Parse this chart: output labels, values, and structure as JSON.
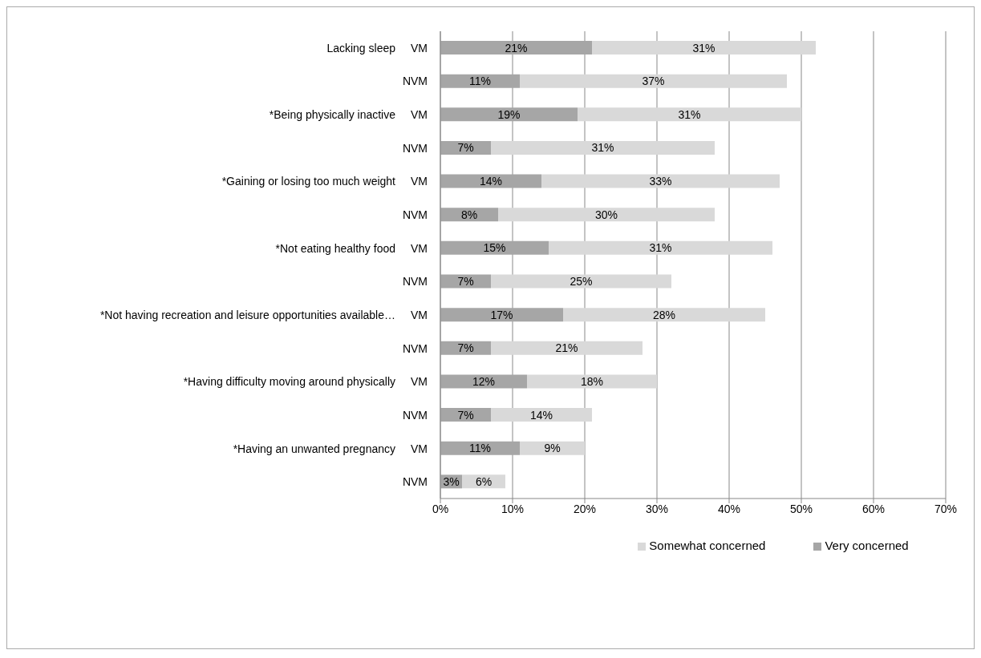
{
  "chart_data": {
    "type": "bar",
    "orientation": "horizontal",
    "stacked": true,
    "categories": [
      "VM",
      "NVM",
      "VM",
      "NVM",
      "VM",
      "NVM",
      "VM",
      "NVM",
      "VM",
      "NVM",
      "VM",
      "NVM",
      "VM",
      "NVM"
    ],
    "annotations": [
      "Lacking sleep",
      "*Being physically inactive",
      "*Gaining or losing too much weight",
      "*Not eating healthy food",
      "*Not having recreation and leisure opportunities available…",
      "*Having difficulty moving around physically",
      "*Having an unwanted pregnancy"
    ],
    "series": [
      {
        "name": "Very concerned",
        "color": "#a6a6a6",
        "values": [
          21,
          11,
          19,
          7,
          14,
          8,
          15,
          7,
          17,
          7,
          12,
          7,
          11,
          3
        ],
        "value_labels": [
          "21%",
          "11%",
          "19%",
          "7%",
          "14%",
          "8%",
          "15%",
          "7%",
          "17%",
          "7%",
          "12%",
          "7%",
          "11%",
          "3%"
        ]
      },
      {
        "name": "Somewhat concerned",
        "color": "#d9d9d9",
        "values": [
          31,
          37,
          31,
          31,
          33,
          30,
          31,
          25,
          28,
          21,
          18,
          14,
          9,
          6
        ],
        "value_labels": [
          "31%",
          "37%",
          "31%",
          "31%",
          "33%",
          "30%",
          "31%",
          "25%",
          "28%",
          "21%",
          "18%",
          "14%",
          "9%",
          "6%"
        ]
      }
    ],
    "xlim": [
      0,
      70
    ],
    "xticks": [
      {
        "value": 0,
        "label": "0%"
      },
      {
        "value": 10,
        "label": "10%"
      },
      {
        "value": 20,
        "label": "20%"
      },
      {
        "value": 30,
        "label": "30%"
      },
      {
        "value": 40,
        "label": "40%"
      },
      {
        "value": 50,
        "label": "50%"
      },
      {
        "value": 60,
        "label": "60%"
      },
      {
        "value": 70,
        "label": "70%"
      }
    ],
    "grid": "x",
    "legend": "bottom"
  }
}
